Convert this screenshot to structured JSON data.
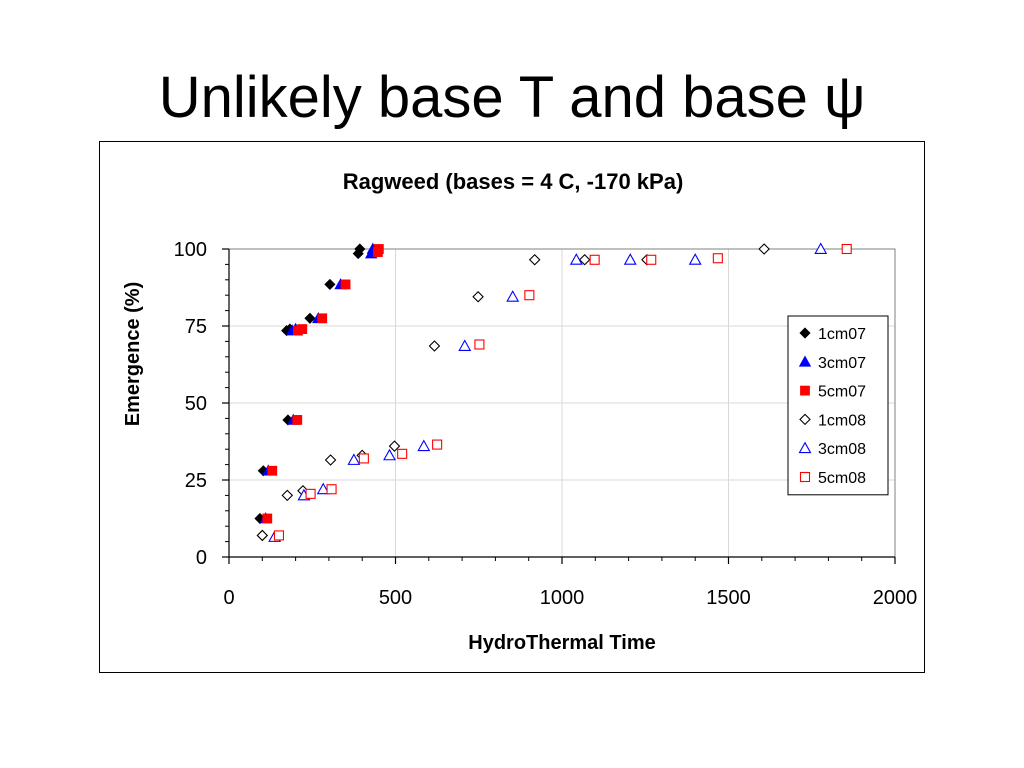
{
  "slide": {
    "title": "Unlikely base T and base ψ"
  },
  "chart_data": {
    "type": "scatter",
    "title": "Ragweed (bases = 4 C, -170 kPa)",
    "xlabel": "HydroThermal Time",
    "ylabel": "Emergence (%)",
    "xlim": [
      0,
      2000
    ],
    "ylim": [
      0,
      100
    ],
    "xticks": [
      0,
      500,
      1000,
      1500,
      2000
    ],
    "yticks": [
      0,
      25,
      50,
      75,
      100
    ],
    "grid": true,
    "legend_position": "right",
    "series": [
      {
        "name": "1cm07",
        "marker": "diamond",
        "filled": true,
        "color": "#000000",
        "points": [
          [
            93,
            12.5
          ],
          [
            103,
            28
          ],
          [
            177,
            44.5
          ],
          [
            173,
            73.5
          ],
          [
            183,
            74
          ],
          [
            243,
            77.5
          ],
          [
            303,
            88.5
          ],
          [
            388,
            98.5
          ],
          [
            393,
            100
          ]
        ]
      },
      {
        "name": "3cm07",
        "marker": "triangle",
        "filled": true,
        "color": "#0000ff",
        "points": [
          [
            110,
            12.5
          ],
          [
            118,
            28
          ],
          [
            193,
            44.5
          ],
          [
            190,
            73.5
          ],
          [
            200,
            74
          ],
          [
            268,
            77.5
          ],
          [
            335,
            88.5
          ],
          [
            427,
            98.5
          ],
          [
            432,
            100
          ]
        ]
      },
      {
        "name": "5cm07",
        "marker": "square",
        "filled": true,
        "color": "#ff0000",
        "points": [
          [
            115,
            12.5
          ],
          [
            130,
            28
          ],
          [
            205,
            44.5
          ],
          [
            207,
            73.5
          ],
          [
            220,
            74
          ],
          [
            280,
            77.5
          ],
          [
            350,
            88.5
          ],
          [
            447,
            99
          ],
          [
            450,
            100
          ]
        ]
      },
      {
        "name": "1cm08",
        "marker": "diamond",
        "filled": false,
        "color": "#000000",
        "points": [
          [
            100,
            7
          ],
          [
            175,
            20
          ],
          [
            222,
            21.5
          ],
          [
            305,
            31.5
          ],
          [
            400,
            33
          ],
          [
            497,
            36
          ],
          [
            617,
            68.5
          ],
          [
            748,
            84.5
          ],
          [
            918,
            96.5
          ],
          [
            1068,
            96.5
          ],
          [
            1255,
            96.5
          ],
          [
            1607,
            100
          ]
        ]
      },
      {
        "name": "3cm08",
        "marker": "triangle",
        "filled": false,
        "color": "#0000ff",
        "points": [
          [
            137,
            6.5
          ],
          [
            225,
            20
          ],
          [
            283,
            22
          ],
          [
            375,
            31.5
          ],
          [
            482,
            33
          ],
          [
            585,
            36
          ],
          [
            708,
            68.5
          ],
          [
            852,
            84.5
          ],
          [
            1043,
            96.5
          ],
          [
            1205,
            96.5
          ],
          [
            1400,
            96.5
          ],
          [
            1777,
            100
          ]
        ]
      },
      {
        "name": "5cm08",
        "marker": "square",
        "filled": false,
        "color": "#ff0000",
        "points": [
          [
            150,
            7
          ],
          [
            245,
            20.5
          ],
          [
            308,
            22
          ],
          [
            405,
            32
          ],
          [
            520,
            33.5
          ],
          [
            625,
            36.5
          ],
          [
            752,
            69
          ],
          [
            902,
            85
          ],
          [
            1098,
            96.5
          ],
          [
            1268,
            96.5
          ],
          [
            1468,
            97
          ],
          [
            1855,
            100
          ]
        ]
      }
    ]
  }
}
